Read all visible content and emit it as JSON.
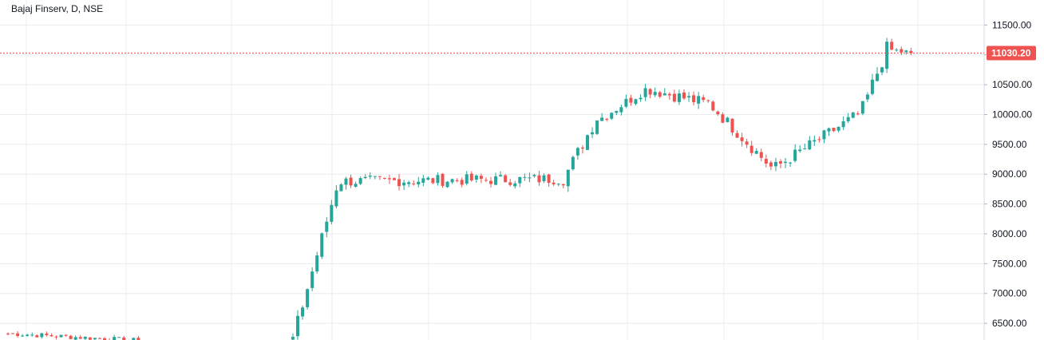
{
  "chart_data": {
    "type": "candlestick",
    "title": "Bajaj Finserv, D, NSE",
    "y_ticks": [
      "6500.00",
      "7000.00",
      "7500.00",
      "8000.00",
      "8500.00",
      "9000.00",
      "9500.00",
      "10000.00",
      "10500.00",
      "11000.00",
      "11500.00"
    ],
    "ylim": [
      6220,
      11920
    ],
    "last_price_label": "11030.20",
    "last_price": 11030.2,
    "grid": true,
    "up_color": "#26a69a",
    "down_color": "#ef5350",
    "grid_color": "#e8ecf1",
    "segments": [
      {
        "n": 28,
        "start": 6330,
        "end": 6330,
        "vol": 55,
        "tail": "falling-from-6330"
      },
      {
        "n": 31,
        "start": 6240,
        "end": 6240,
        "vol": 0,
        "tail": "flat-gap"
      },
      {
        "n": 10,
        "start": 6240,
        "end": 8780,
        "vol": 140
      },
      {
        "n": 46,
        "start": 8880,
        "end": 8920,
        "vol": 120
      },
      {
        "n": 8,
        "start": 8920,
        "end": 9950,
        "vol": 140
      },
      {
        "n": 10,
        "start": 9950,
        "end": 10420,
        "vol": 110
      },
      {
        "n": 12,
        "start": 10420,
        "end": 10200,
        "vol": 130
      },
      {
        "n": 14,
        "start": 10200,
        "end": 9120,
        "vol": 130
      },
      {
        "n": 18,
        "start": 9120,
        "end": 10000,
        "vol": 130
      },
      {
        "n": 6,
        "start": 10100,
        "end": 11100,
        "vol": 160
      },
      {
        "n": 5,
        "start": 11080,
        "end": 11030,
        "vol": 80
      }
    ]
  }
}
